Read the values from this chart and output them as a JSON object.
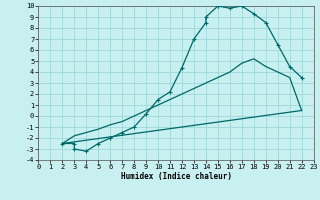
{
  "xlabel": "Humidex (Indice chaleur)",
  "bg_color": "#c8f0f0",
  "grid_color": "#a0d8d8",
  "line_color": "#006868",
  "xlim": [
    0,
    23
  ],
  "ylim": [
    -4,
    10
  ],
  "xticks": [
    0,
    1,
    2,
    3,
    4,
    5,
    6,
    7,
    8,
    9,
    10,
    11,
    12,
    13,
    14,
    15,
    16,
    17,
    18,
    19,
    20,
    21,
    22,
    23
  ],
  "yticks": [
    -4,
    -3,
    -2,
    -1,
    0,
    1,
    2,
    3,
    4,
    5,
    6,
    7,
    8,
    9,
    10
  ],
  "curve1_x": [
    2,
    3,
    3,
    4,
    5,
    6,
    7,
    8,
    9,
    10,
    11,
    12,
    13,
    14,
    14,
    15,
    15,
    16,
    17,
    18,
    19,
    20,
    21,
    22
  ],
  "curve1_y": [
    -2.5,
    -2.5,
    -3.0,
    -3.2,
    -2.5,
    -2.0,
    -1.5,
    -1.0,
    0.2,
    1.5,
    2.2,
    4.4,
    7.0,
    8.5,
    9.0,
    10.0,
    10.0,
    9.8,
    10.0,
    9.3,
    8.5,
    6.5,
    4.5,
    3.5
  ],
  "curve2_x": [
    2,
    3,
    4,
    5,
    6,
    7,
    8,
    9,
    10,
    11,
    12,
    13,
    14,
    15,
    16,
    17,
    18,
    19,
    20,
    21,
    22
  ],
  "curve2_y": [
    -2.5,
    -1.8,
    -1.5,
    -1.2,
    -0.8,
    -0.5,
    0.0,
    0.5,
    1.0,
    1.5,
    2.0,
    2.5,
    3.0,
    3.5,
    4.0,
    4.8,
    5.2,
    4.5,
    4.0,
    3.5,
    0.5
  ],
  "curve3_x": [
    2,
    22
  ],
  "curve3_y": [
    -2.5,
    0.5
  ],
  "xlabel_fontsize": 5.5,
  "tick_fontsize": 5,
  "line_width": 0.9,
  "marker_size": 3.0
}
